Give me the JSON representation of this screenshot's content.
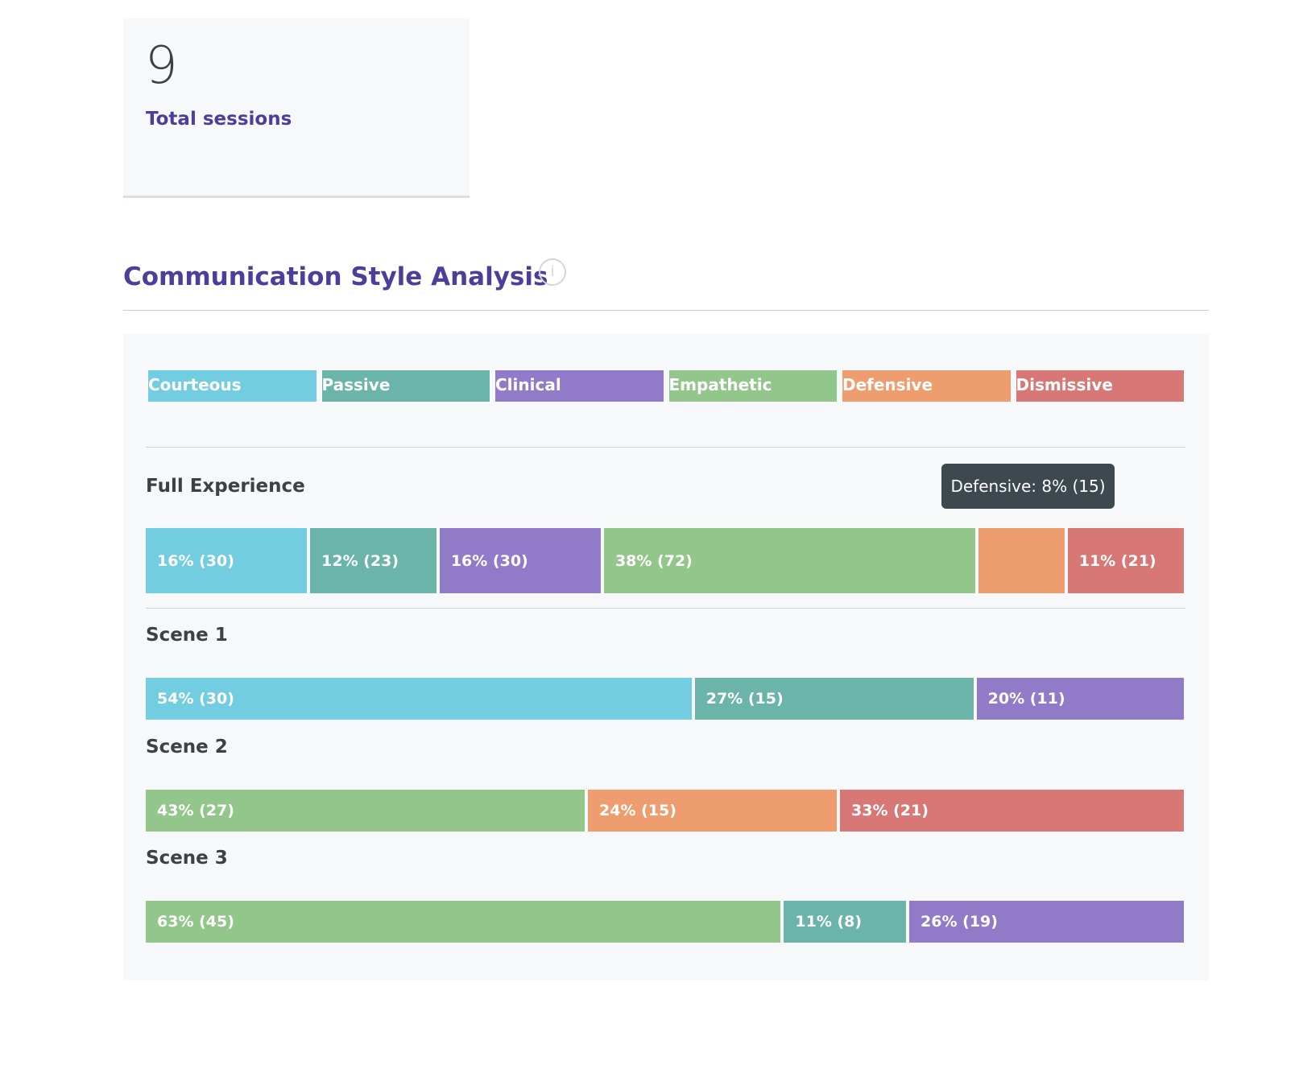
{
  "summary": {
    "total_sessions_value": "9",
    "total_sessions_label": "Total sessions"
  },
  "section": {
    "title": "Communication Style Analysis",
    "info_icon": "info-icon"
  },
  "colors": {
    "Courteous": "#73cde0",
    "Passive": "#6bb4aa",
    "Clinical": "#917ac8",
    "Empathetic": "#93c68a",
    "Defensive": "#ee9d6e",
    "Dismissive": "#d87876"
  },
  "legend": [
    "Courteous",
    "Passive",
    "Clinical",
    "Empathetic",
    "Defensive",
    "Dismissive"
  ],
  "tooltip": "Defensive: 8% (15)",
  "rows": [
    {
      "label": "Full Experience",
      "segments": [
        {
          "style": "Courteous",
          "count": 30,
          "text": "16% (30)"
        },
        {
          "style": "Passive",
          "count": 23,
          "text": "12% (23)"
        },
        {
          "style": "Clinical",
          "count": 30,
          "text": "16% (30)"
        },
        {
          "style": "Empathetic",
          "count": 72,
          "text": "38% (72)"
        },
        {
          "style": "Defensive",
          "count": 15,
          "text": ""
        },
        {
          "style": "Dismissive",
          "count": 21,
          "text": "11% (21)"
        }
      ]
    },
    {
      "label": "Scene 1",
      "segments": [
        {
          "style": "Courteous",
          "count": 30,
          "text": "54% (30)"
        },
        {
          "style": "Passive",
          "count": 15,
          "text": "27% (15)"
        },
        {
          "style": "Clinical",
          "count": 11,
          "text": "20% (11)"
        }
      ]
    },
    {
      "label": "Scene 2",
      "segments": [
        {
          "style": "Empathetic",
          "count": 27,
          "text": "43% (27)"
        },
        {
          "style": "Defensive",
          "count": 15,
          "text": "24% (15)"
        },
        {
          "style": "Dismissive",
          "count": 21,
          "text": "33% (21)"
        }
      ]
    },
    {
      "label": "Scene 3",
      "segments": [
        {
          "style": "Empathetic",
          "count": 45,
          "text": "63% (45)"
        },
        {
          "style": "Passive",
          "count": 8,
          "text": "11% (8)"
        },
        {
          "style": "Clinical",
          "count": 19,
          "text": "26% (19)"
        }
      ]
    }
  ]
}
